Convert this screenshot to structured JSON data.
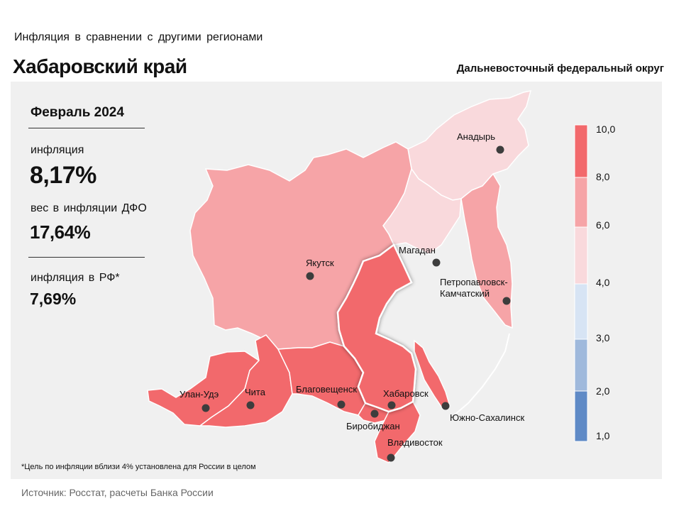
{
  "header": {
    "subtitle": "Инфляция  в сравнении  с другими  регионами",
    "title": "Хабаровский край",
    "district": "Дальневосточный федеральный округ"
  },
  "stats": {
    "period": "Февраль 2024",
    "inflation_label": "инфляция",
    "inflation_value": "8,17%",
    "weight_label": "вес в инфляции  ДФО",
    "weight_value": "17,64%",
    "rf_label": "инфляция  в РФ*",
    "rf_value": "7,69%"
  },
  "legend": {
    "ticks": [
      "10,0",
      "8,0",
      "6,0",
      "4,0",
      "3,0",
      "2,0",
      "1,0"
    ],
    "bands": [
      {
        "range": "8,0–10,0",
        "color": "#f2696c"
      },
      {
        "range": "6,0–8,0",
        "color": "#f6a4a7"
      },
      {
        "range": "4,0–6,0",
        "color": "#f9d9dc"
      },
      {
        "range": "3,0–4,0",
        "color": "#d7e4f4"
      },
      {
        "range": "2,0–3,0",
        "color": "#9fb9dc"
      },
      {
        "range": "1,0–2,0",
        "color": "#5f8ac6"
      }
    ]
  },
  "regions": [
    {
      "city": "Анадырь",
      "band": "4,0–6,0"
    },
    {
      "city": "Магадан",
      "band": "4,0–6,0"
    },
    {
      "city": "Якутск",
      "band": "6,0–8,0"
    },
    {
      "city": "Петропавловск-Камчатский",
      "band": "6,0–8,0"
    },
    {
      "city": "Хабаровск",
      "band": "8,0–10,0",
      "highlighted": true
    },
    {
      "city": "Улан-Удэ",
      "band": "8,0–10,0"
    },
    {
      "city": "Чита",
      "band": "8,0–10,0"
    },
    {
      "city": "Благовещенск",
      "band": "8,0–10,0"
    },
    {
      "city": "Биробиджан",
      "band": "8,0–10,0"
    },
    {
      "city": "Владивосток",
      "band": "8,0–10,0"
    },
    {
      "city": "Южно-Сахалинск",
      "band": "8,0–10,0"
    }
  ],
  "cities": {
    "anadyr": "Анадырь",
    "magadan": "Магадан",
    "yakutsk": "Якутск",
    "petropavlovsk_1": "Петропавловск-",
    "petropavlovsk_2": "Камчатский",
    "ulan_ude": "Улан-Удэ",
    "chita": "Чита",
    "blagoveshchensk": "Благовещенск",
    "khabarovsk": "Хабаровск",
    "birobidzhan": "Биробиджан",
    "vladivostok": "Владивосток",
    "yuzhno": "Южно-Сахалинск"
  },
  "footnote": "*Цель по инфляции вблизи 4% установлена для России в целом",
  "source": "Источник: Росстат, расчеты  Банка России"
}
